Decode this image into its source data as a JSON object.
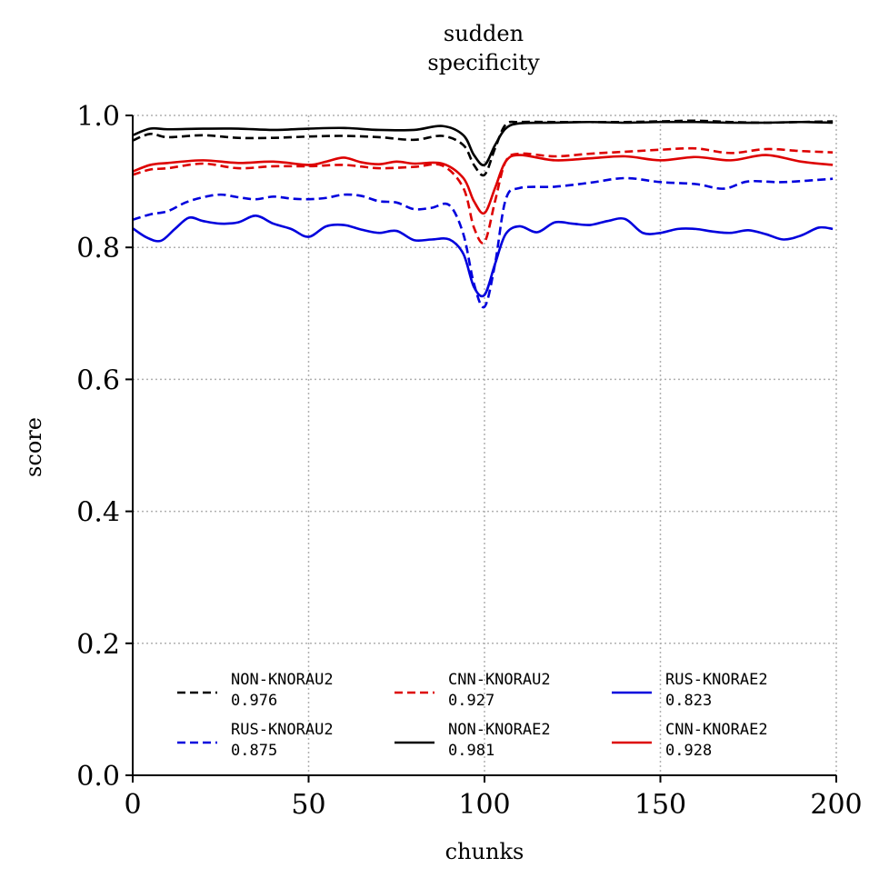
{
  "chart_data": {
    "type": "line",
    "title": "sudden",
    "subtitle": "specificity",
    "xlabel": "chunks",
    "ylabel": "score",
    "xlim": [
      0,
      200
    ],
    "ylim": [
      0,
      1
    ],
    "xticks": [
      0,
      50,
      100,
      150,
      200
    ],
    "xtick_labels": [
      "0",
      "50",
      "100",
      "150",
      "200"
    ],
    "yticks": [
      0,
      0.2,
      0.4,
      0.6,
      0.8,
      1.0
    ],
    "ytick_labels": [
      "0.0",
      "0.2",
      "0.4",
      "0.6",
      "0.8",
      "1.0"
    ],
    "grid": true,
    "legend_position": "bottom-center",
    "series": [
      {
        "name": "NON-KNORAU2",
        "score": "0.976",
        "color": "#000000",
        "dash": "dashed",
        "x": [
          0,
          5,
          10,
          20,
          30,
          40,
          50,
          60,
          70,
          80,
          88,
          94,
          97,
          100,
          103,
          106,
          110,
          120,
          130,
          140,
          150,
          160,
          170,
          180,
          190,
          199
        ],
        "y": [
          0.962,
          0.972,
          0.967,
          0.97,
          0.966,
          0.966,
          0.968,
          0.969,
          0.967,
          0.963,
          0.969,
          0.955,
          0.925,
          0.91,
          0.95,
          0.986,
          0.99,
          0.99,
          0.99,
          0.99,
          0.991,
          0.992,
          0.99,
          0.989,
          0.99,
          0.991
        ]
      },
      {
        "name": "RUS-KNORAU2",
        "score": "0.875",
        "color": "#0000dd",
        "dash": "dashed",
        "x": [
          0,
          5,
          10,
          15,
          20,
          25,
          30,
          35,
          40,
          45,
          50,
          55,
          60,
          65,
          70,
          75,
          80,
          85,
          90,
          94,
          97,
          100,
          103,
          106,
          110,
          120,
          130,
          140,
          150,
          160,
          168,
          175,
          185,
          199
        ],
        "y": [
          0.842,
          0.85,
          0.855,
          0.868,
          0.876,
          0.88,
          0.876,
          0.873,
          0.877,
          0.874,
          0.873,
          0.875,
          0.88,
          0.878,
          0.87,
          0.868,
          0.858,
          0.86,
          0.864,
          0.82,
          0.745,
          0.71,
          0.775,
          0.872,
          0.89,
          0.892,
          0.898,
          0.905,
          0.899,
          0.896,
          0.889,
          0.9,
          0.899,
          0.904
        ]
      },
      {
        "name": "CNN-KNORAU2",
        "score": "0.927",
        "color": "#dd0000",
        "dash": "dashed",
        "x": [
          0,
          5,
          10,
          20,
          30,
          40,
          50,
          60,
          70,
          80,
          88,
          94,
          97,
          100,
          103,
          106,
          110,
          120,
          130,
          140,
          150,
          160,
          170,
          180,
          190,
          199
        ],
        "y": [
          0.91,
          0.918,
          0.92,
          0.927,
          0.92,
          0.923,
          0.923,
          0.925,
          0.92,
          0.922,
          0.924,
          0.89,
          0.83,
          0.808,
          0.87,
          0.93,
          0.942,
          0.938,
          0.942,
          0.945,
          0.948,
          0.95,
          0.943,
          0.949,
          0.946,
          0.944
        ]
      },
      {
        "name": "NON-KNORAE2",
        "score": "0.981",
        "color": "#000000",
        "dash": "solid",
        "x": [
          0,
          5,
          10,
          20,
          30,
          40,
          50,
          60,
          70,
          80,
          88,
          94,
          97,
          100,
          103,
          106,
          110,
          120,
          130,
          140,
          150,
          160,
          170,
          180,
          190,
          199
        ],
        "y": [
          0.97,
          0.98,
          0.979,
          0.98,
          0.98,
          0.978,
          0.98,
          0.981,
          0.978,
          0.978,
          0.984,
          0.97,
          0.94,
          0.925,
          0.955,
          0.98,
          0.988,
          0.989,
          0.99,
          0.989,
          0.99,
          0.99,
          0.989,
          0.989,
          0.99,
          0.989
        ]
      },
      {
        "name": "RUS-KNORAE2",
        "score": "0.823",
        "color": "#0000dd",
        "dash": "solid",
        "x": [
          0,
          4,
          8,
          12,
          16,
          20,
          25,
          30,
          35,
          40,
          45,
          50,
          55,
          60,
          65,
          70,
          75,
          80,
          85,
          90,
          94,
          97,
          100,
          103,
          106,
          110,
          115,
          120,
          125,
          130,
          135,
          140,
          145,
          150,
          155,
          160,
          165,
          170,
          175,
          180,
          185,
          190,
          195,
          199
        ],
        "y": [
          0.829,
          0.815,
          0.81,
          0.828,
          0.845,
          0.84,
          0.836,
          0.838,
          0.848,
          0.836,
          0.828,
          0.816,
          0.832,
          0.834,
          0.827,
          0.822,
          0.825,
          0.811,
          0.812,
          0.812,
          0.79,
          0.74,
          0.728,
          0.775,
          0.82,
          0.832,
          0.823,
          0.838,
          0.836,
          0.834,
          0.84,
          0.843,
          0.822,
          0.822,
          0.828,
          0.828,
          0.824,
          0.822,
          0.826,
          0.82,
          0.812,
          0.818,
          0.83,
          0.828
        ]
      },
      {
        "name": "CNN-KNORAE2",
        "score": "0.928",
        "color": "#dd0000",
        "dash": "solid",
        "x": [
          0,
          5,
          10,
          20,
          30,
          40,
          50,
          55,
          60,
          65,
          70,
          75,
          80,
          88,
          94,
          97,
          100,
          103,
          106,
          110,
          120,
          130,
          140,
          150,
          160,
          170,
          180,
          190,
          199
        ],
        "y": [
          0.915,
          0.925,
          0.928,
          0.932,
          0.928,
          0.93,
          0.925,
          0.93,
          0.936,
          0.929,
          0.926,
          0.93,
          0.927,
          0.927,
          0.905,
          0.87,
          0.852,
          0.89,
          0.93,
          0.94,
          0.932,
          0.935,
          0.938,
          0.932,
          0.937,
          0.932,
          0.94,
          0.93,
          0.925
        ]
      }
    ]
  }
}
